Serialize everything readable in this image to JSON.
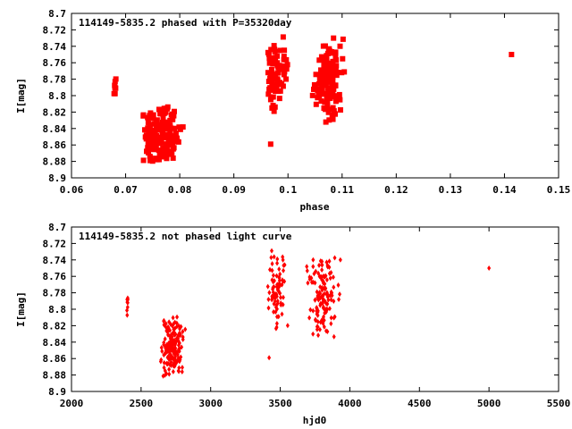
{
  "chart_data": [
    {
      "type": "scatter",
      "title": "114149-5835.2 phased with P=35320day",
      "xlabel": "phase",
      "ylabel": "I[mag]",
      "xlim": [
        0.06,
        0.15
      ],
      "ylim": [
        8.9,
        8.7
      ],
      "y_inverted": true,
      "x_ticks": [
        "0.06",
        "0.07",
        "0.08",
        "0.09",
        "0.1",
        "0.11",
        "0.12",
        "0.13",
        "0.14",
        "0.15"
      ],
      "y_ticks": [
        "8.7",
        "8.72",
        "8.74",
        "8.76",
        "8.78",
        "8.8",
        "8.82",
        "8.84",
        "8.86",
        "8.88",
        "8.9"
      ],
      "grid": false,
      "legend": "none",
      "marker_color": "#ff0000",
      "clusters": [
        {
          "x_range": [
            0.0677,
            0.0685
          ],
          "y_range": [
            8.772,
            8.81
          ],
          "points": 8
        },
        {
          "x_range": [
            0.072,
            0.0812
          ],
          "y_range": [
            8.808,
            8.884
          ],
          "points": 170
        },
        {
          "x_range": [
            0.0955,
            0.0995
          ],
          "y_range": [
            8.722,
            8.832
          ],
          "points": 70
        },
        {
          "x_range": [
            0.099,
            0.1
          ],
          "y_range": [
            8.74,
            8.79
          ],
          "points": 12
        },
        {
          "x_range": [
            0.104,
            0.111
          ],
          "y_range": [
            8.728,
            8.84
          ],
          "points": 130
        }
      ],
      "extra_points": [
        {
          "x": 0.0968,
          "y": 8.859
        },
        {
          "x": 0.1413,
          "y": 8.75
        }
      ]
    },
    {
      "type": "scatter",
      "title": "114149-5835.2 not phased light curve",
      "xlabel": "hjd0",
      "ylabel": "I[mag]",
      "xlim": [
        2000,
        5500
      ],
      "ylim": [
        8.9,
        8.7
      ],
      "y_inverted": true,
      "x_ticks": [
        "2000",
        "2500",
        "3000",
        "3500",
        "4000",
        "4500",
        "5000",
        "5500"
      ],
      "y_ticks": [
        "8.7",
        "8.72",
        "8.74",
        "8.76",
        "8.78",
        "8.8",
        "8.82",
        "8.84",
        "8.86",
        "8.88",
        "8.9"
      ],
      "grid": false,
      "legend": "none",
      "marker_color": "#ff0000",
      "clusters": [
        {
          "x_range": [
            2395,
            2410
          ],
          "y_range": [
            8.772,
            8.81
          ],
          "points": 8
        },
        {
          "x_range": [
            2600,
            2850
          ],
          "y_range": [
            8.808,
            8.884
          ],
          "points": 170
        },
        {
          "x_range": [
            3390,
            3560
          ],
          "y_range": [
            8.722,
            8.832
          ],
          "points": 80
        },
        {
          "x_range": [
            3650,
            3960
          ],
          "y_range": [
            8.728,
            8.84
          ],
          "points": 130
        }
      ],
      "extra_points": [
        {
          "x": 3420,
          "y": 8.859
        },
        {
          "x": 5000,
          "y": 8.75
        }
      ]
    }
  ]
}
